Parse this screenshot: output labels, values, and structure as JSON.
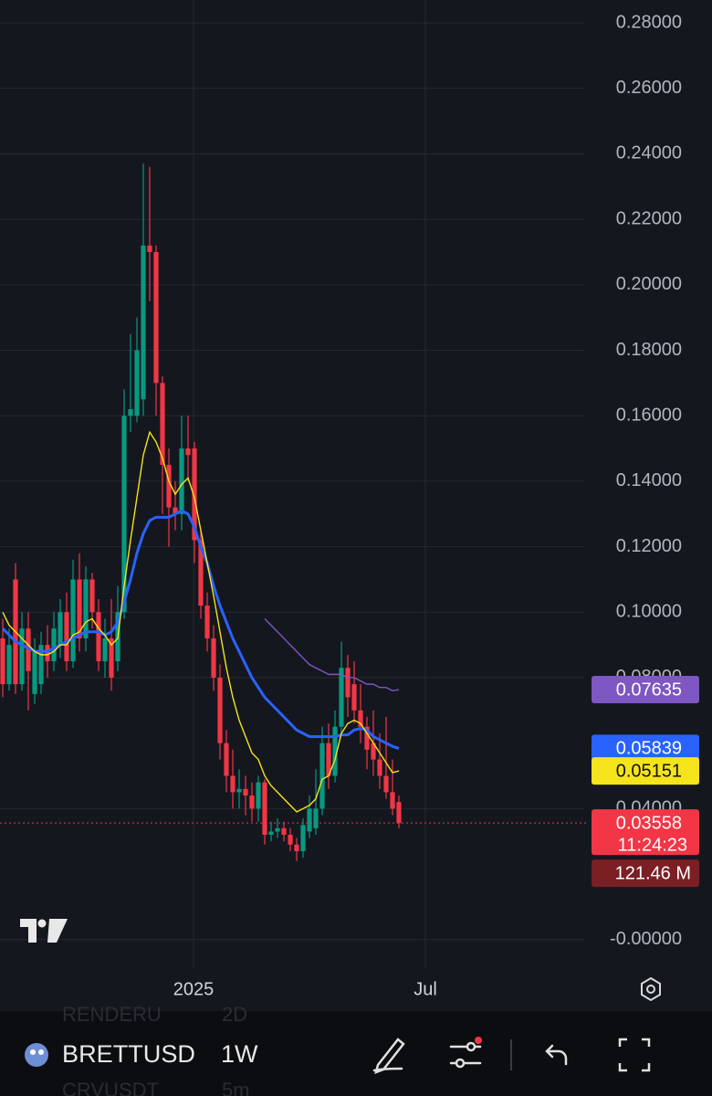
{
  "chart_data": {
    "type": "candlestick",
    "open": [
      0.092,
      0.078,
      0.11,
      0.078,
      0.095,
      0.075,
      0.078,
      0.09,
      0.085,
      0.09,
      0.1,
      0.085,
      0.11,
      0.092,
      0.11,
      0.1,
      0.085,
      0.092,
      0.085,
      0.1,
      0.16,
      0.16,
      0.165,
      0.212,
      0.21,
      0.17,
      0.145,
      0.132,
      0.13,
      0.15,
      0.15,
      0.122,
      0.102,
      0.092,
      0.08,
      0.06,
      0.05,
      0.045,
      0.046,
      0.044,
      0.04,
      0.048,
      0.032,
      0.033,
      0.034,
      0.032,
      0.029,
      0.027,
      0.033,
      0.034,
      0.04,
      0.06,
      0.05,
      0.065,
      0.083,
      0.078,
      0.07,
      0.065,
      0.06,
      0.055,
      0.05,
      0.045,
      0.042
    ],
    "high": [
      0.098,
      0.095,
      0.115,
      0.1,
      0.1,
      0.092,
      0.094,
      0.096,
      0.1,
      0.104,
      0.106,
      0.116,
      0.118,
      0.114,
      0.112,
      0.104,
      0.098,
      0.104,
      0.108,
      0.168,
      0.185,
      0.19,
      0.237,
      0.236,
      0.212,
      0.172,
      0.15,
      0.14,
      0.16,
      0.16,
      0.152,
      0.125,
      0.106,
      0.096,
      0.084,
      0.064,
      0.058,
      0.052,
      0.05,
      0.048,
      0.05,
      0.049,
      0.036,
      0.037,
      0.036,
      0.034,
      0.031,
      0.037,
      0.044,
      0.052,
      0.065,
      0.066,
      0.07,
      0.091,
      0.087,
      0.085,
      0.078,
      0.068,
      0.07,
      0.063,
      0.068,
      0.055,
      0.044
    ],
    "low": [
      0.074,
      0.076,
      0.075,
      0.076,
      0.07,
      0.072,
      0.075,
      0.08,
      0.082,
      0.086,
      0.082,
      0.083,
      0.088,
      0.088,
      0.095,
      0.082,
      0.08,
      0.076,
      0.082,
      0.098,
      0.155,
      0.158,
      0.16,
      0.195,
      0.16,
      0.13,
      0.12,
      0.125,
      0.125,
      0.14,
      0.115,
      0.098,
      0.088,
      0.076,
      0.055,
      0.045,
      0.04,
      0.04,
      0.038,
      0.036,
      0.036,
      0.029,
      0.03,
      0.031,
      0.03,
      0.027,
      0.024,
      0.025,
      0.031,
      0.032,
      0.038,
      0.046,
      0.048,
      0.062,
      0.068,
      0.066,
      0.06,
      0.052,
      0.05,
      0.046,
      0.043,
      0.038,
      0.034
    ],
    "close": [
      0.078,
      0.09,
      0.078,
      0.095,
      0.082,
      0.088,
      0.09,
      0.085,
      0.095,
      0.1,
      0.085,
      0.11,
      0.092,
      0.11,
      0.1,
      0.085,
      0.092,
      0.08,
      0.1,
      0.16,
      0.162,
      0.18,
      0.212,
      0.21,
      0.17,
      0.145,
      0.132,
      0.13,
      0.15,
      0.148,
      0.122,
      0.102,
      0.092,
      0.08,
      0.06,
      0.05,
      0.045,
      0.046,
      0.044,
      0.04,
      0.048,
      0.032,
      0.033,
      0.034,
      0.032,
      0.029,
      0.027,
      0.035,
      0.04,
      0.04,
      0.06,
      0.05,
      0.065,
      0.083,
      0.074,
      0.07,
      0.065,
      0.058,
      0.055,
      0.05,
      0.045,
      0.04,
      0.03558
    ],
    "up_color": "#089981",
    "down_color": "#f23645",
    "series": [
      {
        "color": "#2962ff",
        "values": [
          0.095,
          0.093,
          0.091,
          0.09,
          0.089,
          0.088,
          0.088,
          0.088,
          0.089,
          0.09,
          0.091,
          0.092,
          0.093,
          0.094,
          0.094,
          0.094,
          0.093,
          0.094,
          0.097,
          0.103,
          0.11,
          0.118,
          0.124,
          0.128,
          0.129,
          0.129,
          0.129,
          0.13,
          0.131,
          0.13,
          0.126,
          0.12,
          0.115,
          0.108,
          0.102,
          0.097,
          0.092,
          0.088,
          0.084,
          0.08,
          0.077,
          0.074,
          0.072,
          0.07,
          0.068,
          0.066,
          0.064,
          0.063,
          0.062,
          0.062,
          0.062,
          0.062,
          0.062,
          0.0625,
          0.0625,
          0.064,
          0.0645,
          0.064,
          0.062,
          0.061,
          0.06,
          0.059,
          0.05839
        ]
      },
      {
        "color": "#f5e31c",
        "values": [
          0.1,
          0.096,
          0.094,
          0.092,
          0.09,
          0.088,
          0.087,
          0.087,
          0.088,
          0.09,
          0.09,
          0.093,
          0.094,
          0.097,
          0.098,
          0.095,
          0.093,
          0.09,
          0.092,
          0.108,
          0.122,
          0.135,
          0.148,
          0.155,
          0.152,
          0.147,
          0.14,
          0.136,
          0.139,
          0.141,
          0.135,
          0.125,
          0.115,
          0.105,
          0.094,
          0.083,
          0.074,
          0.067,
          0.062,
          0.057,
          0.055,
          0.05,
          0.047,
          0.045,
          0.043,
          0.041,
          0.039,
          0.04,
          0.041,
          0.043,
          0.049,
          0.05,
          0.055,
          0.063,
          0.066,
          0.067,
          0.066,
          0.063,
          0.06,
          0.057,
          0.054,
          0.051,
          0.05151
        ]
      },
      {
        "color": "#7e57c2",
        "values": [
          null,
          null,
          null,
          null,
          null,
          null,
          null,
          null,
          null,
          null,
          null,
          null,
          null,
          null,
          null,
          null,
          null,
          null,
          null,
          null,
          null,
          null,
          null,
          null,
          null,
          null,
          null,
          null,
          null,
          null,
          null,
          null,
          null,
          null,
          null,
          null,
          null,
          null,
          null,
          null,
          null,
          0.098,
          0.096,
          0.094,
          0.092,
          0.09,
          0.088,
          0.086,
          0.084,
          0.083,
          0.082,
          0.081,
          0.081,
          0.081,
          0.08,
          0.08,
          0.079,
          0.078,
          0.078,
          0.077,
          0.077,
          0.076,
          0.07635
        ]
      }
    ],
    "ylim": [
      -0.0065,
      0.287
    ],
    "yticks": [
      {
        "value": 0.28,
        "label": "0.28000"
      },
      {
        "value": 0.26,
        "label": "0.26000"
      },
      {
        "value": 0.24,
        "label": "0.24000"
      },
      {
        "value": 0.22,
        "label": "0.22000"
      },
      {
        "value": 0.2,
        "label": "0.20000"
      },
      {
        "value": 0.18,
        "label": "0.18000"
      },
      {
        "value": 0.16,
        "label": "0.16000"
      },
      {
        "value": 0.14,
        "label": "0.14000"
      },
      {
        "value": 0.12,
        "label": "0.12000"
      },
      {
        "value": 0.1,
        "label": "0.10000"
      },
      {
        "value": 0.08,
        "label": "0.08000"
      },
      {
        "value": 0.04,
        "label": "0.04000"
      },
      {
        "value": 0,
        "label": "-0.00000"
      }
    ],
    "x_labels": [
      "2025",
      "Jul"
    ],
    "price_tags": [
      {
        "value": 0.07635,
        "label": "0.07635",
        "color": "#7e57c2"
      },
      {
        "value": 0.05839,
        "label": "0.05839",
        "color": "#2962ff"
      },
      {
        "value": 0.05151,
        "label": "0.05151",
        "color": "#f5e31c"
      },
      {
        "value": 0.03558,
        "label": "0.03558",
        "color": "#f23645"
      }
    ],
    "countdown": "11:24:23",
    "volume_tag": "121.46 M",
    "grid": true
  },
  "toolbar": {
    "symbol": "BRETTUSD",
    "interval": "1W",
    "ghost_top": [
      "RENDERU",
      "2D"
    ],
    "ghost_bottom": [
      "CRVUSDT",
      "5m"
    ]
  }
}
